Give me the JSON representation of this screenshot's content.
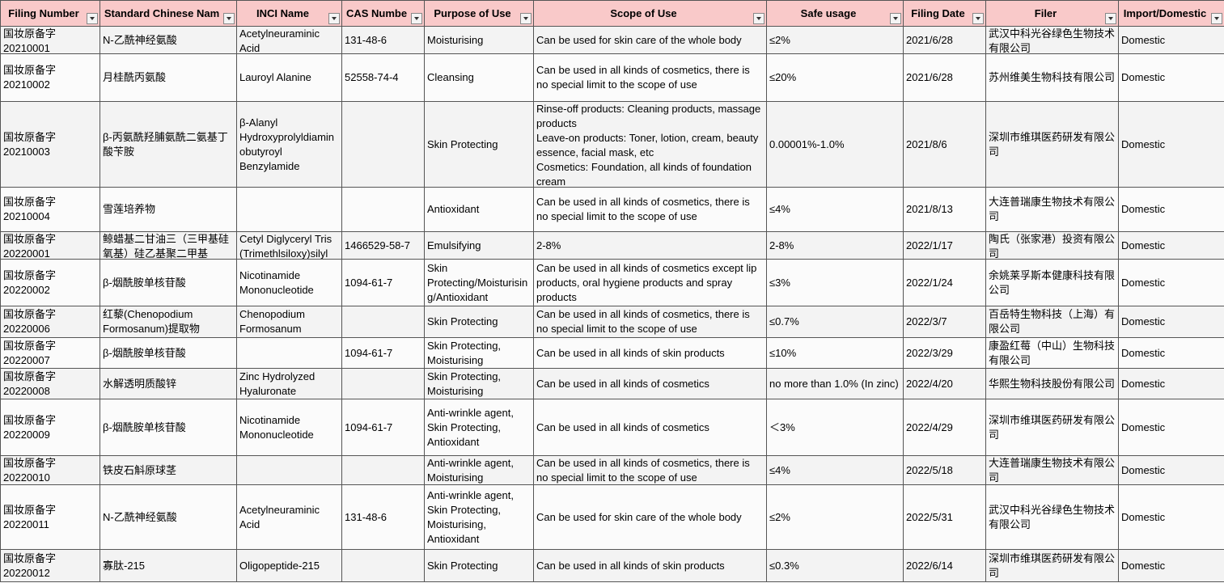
{
  "table": {
    "header": [
      "Filing Number",
      "Standard Chinese Nam",
      "INCI Name",
      "CAS Numbe",
      "Purpose of Use",
      "Scope of Use",
      "Safe usage",
      "Filing Date",
      "Filer",
      "Import/Domestic"
    ],
    "rows": [
      [
        "国妆原备字20210001",
        "N-乙酰神经氨酸",
        "Acetylneuraminic Acid",
        "131-48-6",
        "Moisturising",
        "Can be used for skin care of the whole body",
        "≤2%",
        "2021/6/28",
        "武汉中科光谷绿色生物技术有限公司",
        "Domestic"
      ],
      [
        "国妆原备字20210002",
        "月桂酰丙氨酸",
        "Lauroyl Alanine",
        "52558-74-4",
        "Cleansing",
        "Can be used in all kinds of cosmetics, there is no special limit to the scope of use",
        "≤20%",
        "2021/6/28",
        "苏州维美生物科技有限公司",
        "Domestic"
      ],
      [
        "国妆原备字20210003",
        "β-丙氨酰羟脯氨酰二氨基丁酸苄胺",
        "β-Alanyl Hydroxyprolyldiaminobutyroyl Benzylamide",
        null,
        "Skin Protecting",
        "Rinse-off products: Cleaning products, massage products\nLeave-on products: Toner, lotion, cream, beauty essence, facial mask, etc\nCosmetics: Foundation, all kinds of foundation cream",
        "0.00001%-1.0%",
        "2021/8/6",
        "深圳市维琪医药研发有限公司",
        "Domestic"
      ],
      [
        "国妆原备字20210004",
        "雪莲培养物",
        null,
        null,
        "Antioxidant",
        "Can be used in all kinds of cosmetics, there is no special limit to the scope of use",
        "≤4%",
        "2021/8/13",
        "大连普瑞康生物技术有限公司",
        "Domestic"
      ],
      [
        "国妆原备字20220001",
        "鲸蜡基二甘油三（三甲基硅氧基）硅乙基聚二甲基",
        "Cetyl Diglyceryl Tris (Trimethlsiloxy)silyl",
        "1466529-58-7",
        "Emulsifying",
        "2-8%",
        "2-8%",
        "2022/1/17",
        "陶氏（张家港）投资有限公司",
        "Domestic"
      ],
      [
        "国妆原备字20220002",
        "β-烟酰胺单核苷酸",
        "Nicotinamide Mononucleotide",
        "1094-61-7",
        "Skin Protecting/Moisturising/Antioxidant",
        "Can be used in all kinds of cosmetics except lip products, oral hygiene products and spray products",
        "≤3%",
        "2022/1/24",
        "余姚莱孚斯本健康科技有限公司",
        "Domestic"
      ],
      [
        "国妆原备字20220006",
        "红藜(Chenopodium Formosanum)提取物",
        "Chenopodium Formosanum",
        null,
        "Skin Protecting",
        "Can be used in all kinds of cosmetics, there is no special limit to the scope of use",
        "≤0.7%",
        "2022/3/7",
        "百岳特生物科技（上海）有限公司",
        "Domestic"
      ],
      [
        "国妆原备字20220007",
        " β-烟酰胺单核苷酸",
        null,
        "1094-61-7",
        "Skin Protecting, Moisturising",
        "Can be used in all kinds of skin products",
        "≤10%",
        "2022/3/29",
        "康盈红莓（中山）生物科技有限公司",
        "Domestic"
      ],
      [
        "国妆原备字20220008",
        "水解透明质酸锌",
        "Zinc Hydrolyzed Hyaluronate",
        null,
        "Skin Protecting, Moisturising",
        "Can be used in all kinds of cosmetics",
        "no more than 1.0% (In zinc)",
        "2022/4/20",
        "华熙生物科技股份有限公司",
        "Domestic"
      ],
      [
        "国妆原备字20220009",
        "β-烟酰胺单核苷酸",
        "Nicotinamide Mononucleotide",
        "1094-61-7",
        "Anti-wrinkle agent, Skin Protecting, Antioxidant",
        "Can be used in all kinds of cosmetics",
        "＜3%",
        "2022/4/29",
        "深圳市维琪医药研发有限公司",
        "Domestic"
      ],
      [
        "国妆原备字20220010",
        "铁皮石斛原球茎",
        null,
        null,
        "Anti-wrinkle agent, Moisturising",
        "Can be used in all kinds of cosmetics, there is no special limit to the scope of use",
        "≤4%",
        "2022/5/18",
        "大连普瑞康生物技术有限公司",
        "Domestic"
      ],
      [
        "国妆原备字20220011",
        "N-乙酰神经氨酸",
        "Acetylneuraminic Acid",
        "131-48-6",
        "Anti-wrinkle agent, Skin Protecting, Moisturising, Antioxidant",
        "Can be used for skin care of the whole body",
        "≤2%",
        "2022/5/31",
        "武汉中科光谷绿色生物技术有限公司",
        "Domestic"
      ],
      [
        "国妆原备字20220012",
        "寡肽-215",
        "Oligopeptide-215",
        null,
        "Skin Protecting",
        "Can be used in all kinds of skin products",
        "≤0.3%",
        "2022/6/14",
        "深圳市维琪医药研发有限公司",
        "Domestic"
      ]
    ]
  }
}
